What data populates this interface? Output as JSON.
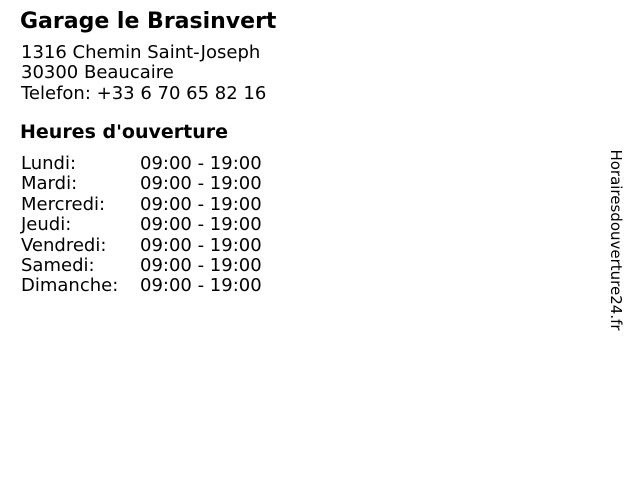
{
  "business": {
    "name": "Garage le Brasinvert",
    "address_street": "1316 Chemin Saint-Joseph",
    "address_city": "30300 Beaucaire",
    "phone_line": "Telefon: +33 6 70 65 82 16"
  },
  "hours": {
    "heading": "Heures d'ouverture",
    "rows": [
      {
        "day": "Lundi:",
        "time": "09:00 - 19:00"
      },
      {
        "day": "Mardi:",
        "time": "09:00 - 19:00"
      },
      {
        "day": "Mercredi:",
        "time": "09:00 - 19:00"
      },
      {
        "day": "Jeudi:",
        "time": "09:00 - 19:00"
      },
      {
        "day": "Vendredi:",
        "time": "09:00 - 19:00"
      },
      {
        "day": "Samedi:",
        "time": "09:00 - 19:00"
      },
      {
        "day": "Dimanche:",
        "time": "09:00 - 19:00"
      }
    ]
  },
  "watermark": {
    "text": "Horairesdouverture24.fr"
  },
  "colors": {
    "text": "#000000",
    "background": "#ffffff"
  }
}
